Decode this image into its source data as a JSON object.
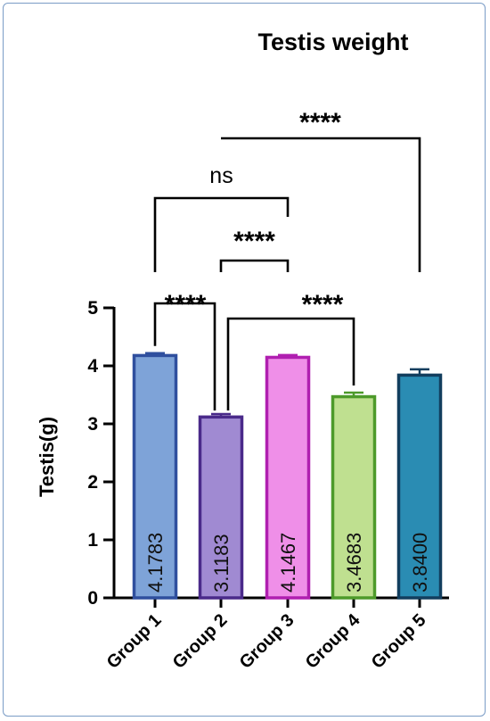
{
  "chart_data": {
    "type": "bar",
    "title": "Testis weight",
    "ylabel": "Testis(g)",
    "xlabel": "",
    "ylim": [
      0,
      5
    ],
    "yticks": [
      0,
      1,
      2,
      3,
      4,
      5
    ],
    "categories": [
      "Group 1",
      "Group 2",
      "Group 3",
      "Group 4",
      "Group 5"
    ],
    "values": [
      4.1783,
      3.1183,
      4.1467,
      3.4683,
      3.84
    ],
    "value_labels": [
      "4.1783",
      "3.1183",
      "4.1467",
      "3.4683",
      "3.8400"
    ],
    "error": [
      0.04,
      0.05,
      0.04,
      0.07,
      0.1
    ],
    "colors": [
      "#7ea3d8",
      "#a08ad2",
      "#ef8fe8",
      "#bfe090",
      "#2a8cb3"
    ],
    "edge_colors": [
      "#2f4f9e",
      "#4a2a8a",
      "#b01fb0",
      "#4d9a2a",
      "#123e5e"
    ],
    "comparisons": [
      {
        "from": "Group 1",
        "to": "Group 2",
        "label": "****"
      },
      {
        "from": "Group 2",
        "to": "Group 3",
        "label": "****"
      },
      {
        "from": "Group 1",
        "to": "Group 3",
        "label": "ns"
      },
      {
        "from": "Group 2",
        "to": "Group 4",
        "label": "****"
      },
      {
        "from": "Group 2",
        "to": "Group 5",
        "label": "****"
      }
    ]
  }
}
